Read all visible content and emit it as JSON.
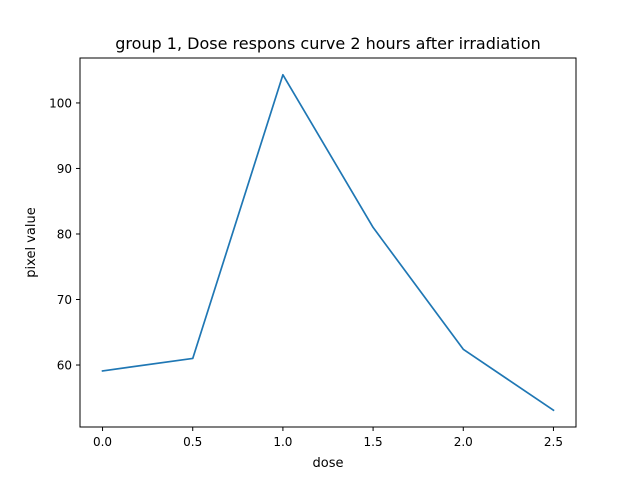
{
  "chart_data": {
    "type": "line",
    "title": "group 1, Dose respons curve 2 hours after irradiation",
    "xlabel": "dose",
    "ylabel": "pixel value",
    "x": [
      0.0,
      0.5,
      1.0,
      1.5,
      2.0,
      2.5
    ],
    "series": [
      {
        "values": [
          59.1,
          61.0,
          104.3,
          81.0,
          62.4,
          53.1
        ],
        "color": "#1f77b4"
      }
    ],
    "xlim": [
      -0.125,
      2.625
    ],
    "ylim": [
      50.54,
      106.86
    ],
    "xticks": [
      0.0,
      0.5,
      1.0,
      1.5,
      2.0,
      2.5
    ],
    "xtick_labels": [
      "0.0",
      "0.5",
      "1.0",
      "1.5",
      "2.0",
      "2.5"
    ],
    "yticks": [
      60,
      70,
      80,
      90,
      100
    ],
    "ytick_labels": [
      "60",
      "70",
      "80",
      "90",
      "100"
    ],
    "grid": false,
    "legend": "none"
  }
}
